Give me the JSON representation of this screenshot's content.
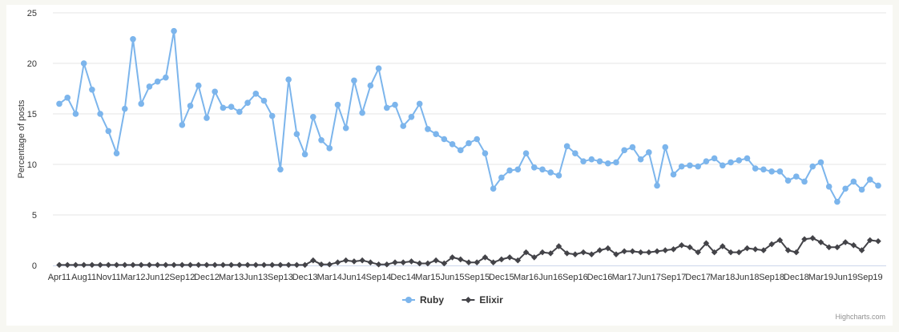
{
  "chart_data": {
    "type": "line",
    "ylabel": "Percentage of posts",
    "ylim": [
      0,
      25
    ],
    "yticks": [
      0,
      5,
      10,
      15,
      20,
      25
    ],
    "grid": true,
    "legend_position": "bottom-center",
    "credits": "Highcharts.com",
    "x_labels": [
      {
        "label": "Apr11",
        "index": 0
      },
      {
        "label": "Aug11",
        "index": 3
      },
      {
        "label": "Nov11",
        "index": 6
      },
      {
        "label": "Mar12",
        "index": 9
      },
      {
        "label": "Jun12",
        "index": 12
      },
      {
        "label": "Sep12",
        "index": 15
      },
      {
        "label": "Dec12",
        "index": 18
      },
      {
        "label": "Mar13",
        "index": 21
      },
      {
        "label": "Jun13",
        "index": 24
      },
      {
        "label": "Sep13",
        "index": 27
      },
      {
        "label": "Dec13",
        "index": 30
      },
      {
        "label": "Mar14",
        "index": 33
      },
      {
        "label": "Jun14",
        "index": 36
      },
      {
        "label": "Sep14",
        "index": 39
      },
      {
        "label": "Dec14",
        "index": 42
      },
      {
        "label": "Mar15",
        "index": 45
      },
      {
        "label": "Jun15",
        "index": 48
      },
      {
        "label": "Sep15",
        "index": 51
      },
      {
        "label": "Dec15",
        "index": 54
      },
      {
        "label": "Mar16",
        "index": 57
      },
      {
        "label": "Jun16",
        "index": 60
      },
      {
        "label": "Sep16",
        "index": 63
      },
      {
        "label": "Dec16",
        "index": 66
      },
      {
        "label": "Mar17",
        "index": 69
      },
      {
        "label": "Jun17",
        "index": 72
      },
      {
        "label": "Sep17",
        "index": 75
      },
      {
        "label": "Dec17",
        "index": 78
      },
      {
        "label": "Mar18",
        "index": 81
      },
      {
        "label": "Jun18",
        "index": 84
      },
      {
        "label": "Sep18",
        "index": 87
      },
      {
        "label": "Dec18",
        "index": 90
      },
      {
        "label": "Mar19",
        "index": 93
      },
      {
        "label": "Jun19",
        "index": 96
      },
      {
        "label": "Sep19",
        "index": 99
      }
    ],
    "series": [
      {
        "name": "Ruby",
        "color": "#7cb5ec",
        "marker": "circle",
        "values": [
          16.0,
          16.6,
          15.0,
          20.0,
          17.4,
          15.0,
          13.3,
          11.1,
          15.5,
          22.4,
          16.0,
          17.7,
          18.2,
          18.6,
          23.2,
          13.9,
          15.8,
          17.8,
          14.6,
          17.2,
          15.6,
          15.7,
          15.2,
          16.1,
          17.0,
          16.3,
          14.8,
          9.5,
          18.4,
          13.0,
          11.0,
          14.7,
          12.4,
          11.6,
          15.9,
          13.6,
          18.3,
          15.1,
          17.8,
          19.5,
          15.6,
          15.9,
          13.8,
          14.7,
          16.0,
          13.5,
          13.0,
          12.5,
          12.0,
          11.4,
          12.1,
          12.5,
          11.1,
          7.6,
          8.7,
          9.4,
          9.5,
          11.1,
          9.7,
          9.5,
          9.2,
          8.9,
          11.8,
          11.1,
          10.3,
          10.5,
          10.3,
          10.1,
          10.2,
          11.4,
          11.7,
          10.5,
          11.2,
          7.9,
          11.7,
          9.0,
          9.8,
          9.9,
          9.8,
          10.3,
          10.6,
          9.9,
          10.2,
          10.4,
          10.6,
          9.6,
          9.5,
          9.3,
          9.3,
          8.4,
          8.8,
          8.3,
          9.8,
          10.2,
          7.8,
          6.3,
          7.6,
          8.3,
          7.5,
          8.5,
          7.9
        ]
      },
      {
        "name": "Elixir",
        "color": "#434348",
        "marker": "diamond",
        "values": [
          0.05,
          0.05,
          0.05,
          0.05,
          0.05,
          0.05,
          0.05,
          0.05,
          0.05,
          0.05,
          0.05,
          0.05,
          0.05,
          0.05,
          0.05,
          0.05,
          0.05,
          0.05,
          0.05,
          0.05,
          0.05,
          0.05,
          0.05,
          0.05,
          0.05,
          0.05,
          0.05,
          0.05,
          0.05,
          0.05,
          0.05,
          0.5,
          0.1,
          0.1,
          0.3,
          0.5,
          0.4,
          0.5,
          0.3,
          0.1,
          0.1,
          0.3,
          0.3,
          0.4,
          0.2,
          0.2,
          0.5,
          0.2,
          0.8,
          0.6,
          0.3,
          0.3,
          0.8,
          0.3,
          0.6,
          0.8,
          0.5,
          1.3,
          0.8,
          1.3,
          1.2,
          1.9,
          1.2,
          1.1,
          1.3,
          1.1,
          1.5,
          1.7,
          1.1,
          1.4,
          1.4,
          1.3,
          1.3,
          1.4,
          1.5,
          1.6,
          2.0,
          1.8,
          1.3,
          2.2,
          1.3,
          1.9,
          1.3,
          1.3,
          1.7,
          1.6,
          1.5,
          2.1,
          2.5,
          1.5,
          1.3,
          2.6,
          2.7,
          2.3,
          1.8,
          1.8,
          2.3,
          2.0,
          1.5,
          2.5,
          2.4
        ]
      }
    ]
  }
}
